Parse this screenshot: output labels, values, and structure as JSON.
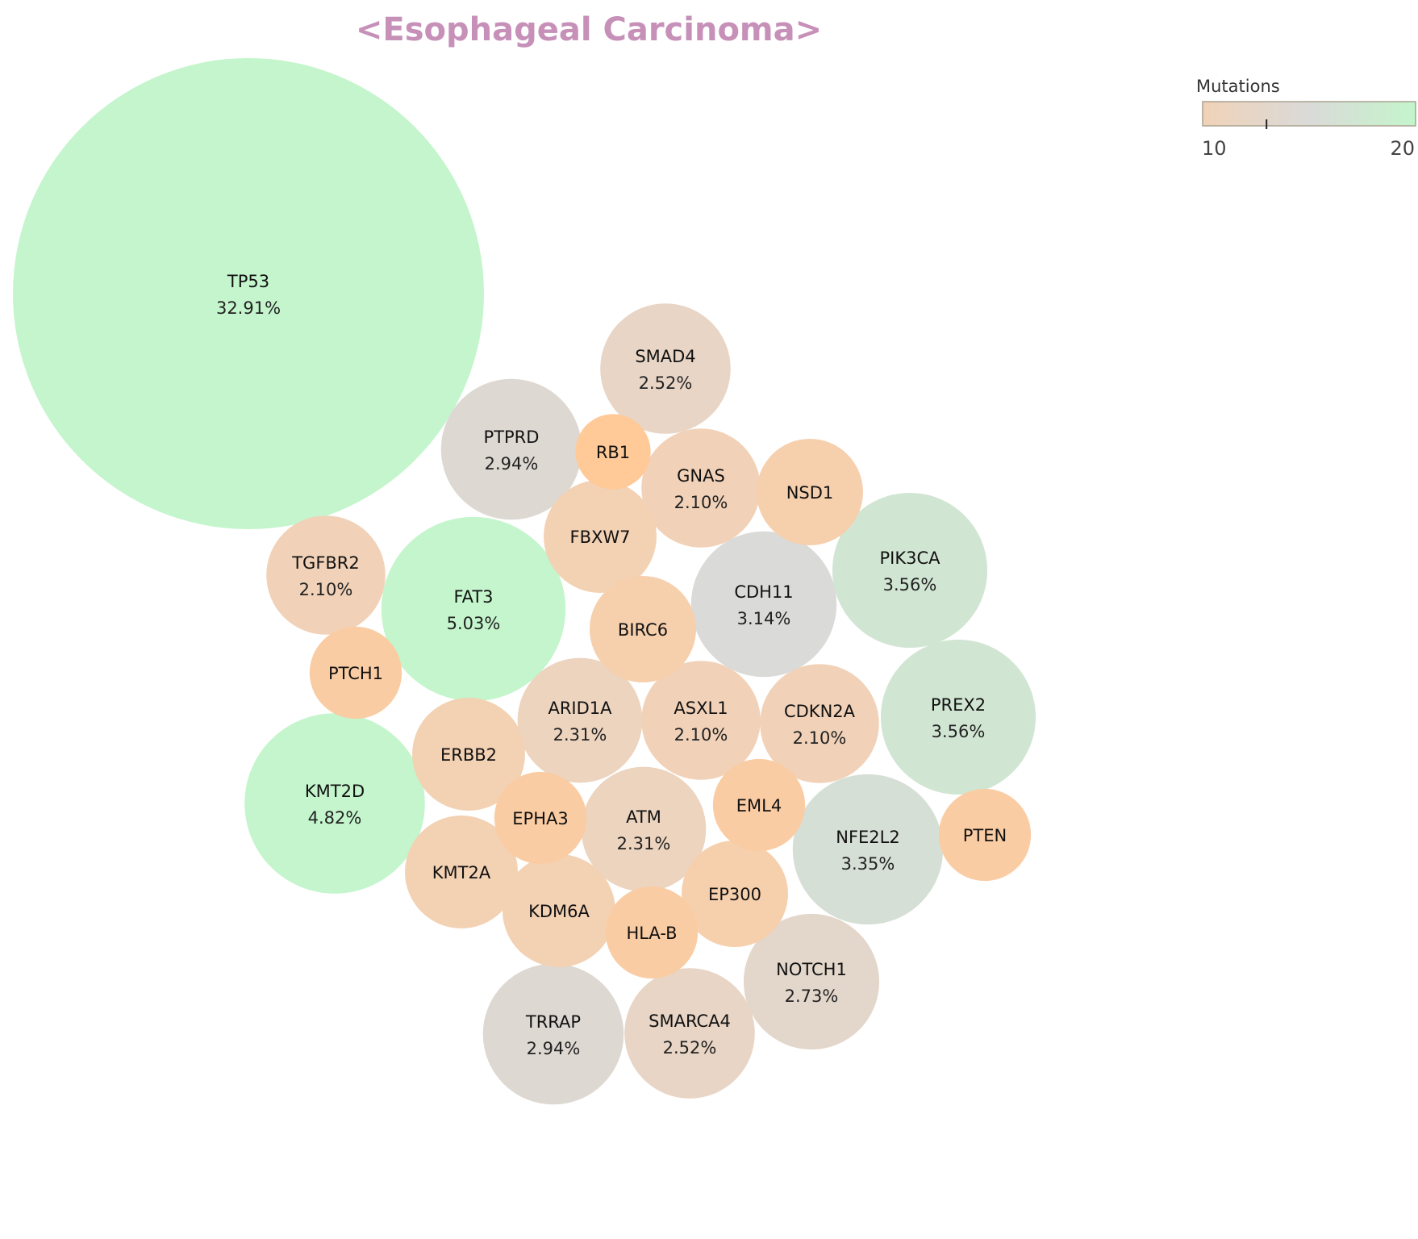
{
  "chart_data": {
    "type": "bubble",
    "title": "<Esophageal Carcinoma>",
    "colorbar": {
      "title": "Mutations",
      "min": 10,
      "max": 20,
      "tick_labels": [
        "10",
        "20"
      ],
      "marker_value": 13,
      "colors": [
        "#f1d2b8",
        "#dadad8",
        "#c4f5cc"
      ]
    },
    "colors": {
      "title": "#c690b8",
      "orange": "#ffc998"
    },
    "bubbles": [
      {
        "gene": "TP53",
        "pct": "32.91%",
        "value": 32.91
      },
      {
        "gene": "FAT3",
        "pct": "5.03%",
        "value": 5.03
      },
      {
        "gene": "KMT2D",
        "pct": "4.82%",
        "value": 4.82
      },
      {
        "gene": "PIK3CA",
        "pct": "3.56%",
        "value": 3.56
      },
      {
        "gene": "PREX2",
        "pct": "3.56%",
        "value": 3.56
      },
      {
        "gene": "NFE2L2",
        "pct": "3.35%",
        "value": 3.35
      },
      {
        "gene": "CDH11",
        "pct": "3.14%",
        "value": 3.14
      },
      {
        "gene": "PTPRD",
        "pct": "2.94%",
        "value": 2.94
      },
      {
        "gene": "TRRAP",
        "pct": "2.94%",
        "value": 2.94
      },
      {
        "gene": "NOTCH1",
        "pct": "2.73%",
        "value": 2.73
      },
      {
        "gene": "SMAD4",
        "pct": "2.52%",
        "value": 2.52
      },
      {
        "gene": "SMARCA4",
        "pct": "2.52%",
        "value": 2.52
      },
      {
        "gene": "ARID1A",
        "pct": "2.31%",
        "value": 2.31
      },
      {
        "gene": "ATM",
        "pct": "2.31%",
        "value": 2.31
      },
      {
        "gene": "TGFBR2",
        "pct": "2.10%",
        "value": 2.1
      },
      {
        "gene": "GNAS",
        "pct": "2.10%",
        "value": 2.1
      },
      {
        "gene": "ASXL1",
        "pct": "2.10%",
        "value": 2.1
      },
      {
        "gene": "CDKN2A",
        "pct": "2.10%",
        "value": 2.1
      },
      {
        "gene": "FBXW7",
        "pct": "",
        "value": 1.89
      },
      {
        "gene": "ERBB2",
        "pct": "",
        "value": 1.89
      },
      {
        "gene": "KMT2A",
        "pct": "",
        "value": 1.89
      },
      {
        "gene": "KDM6A",
        "pct": "",
        "value": 1.89
      },
      {
        "gene": "NSD1",
        "pct": "",
        "value": 1.68
      },
      {
        "gene": "BIRC6",
        "pct": "",
        "value": 1.68
      },
      {
        "gene": "EP300",
        "pct": "",
        "value": 1.68
      },
      {
        "gene": "PTCH1",
        "pct": "",
        "value": 1.26
      },
      {
        "gene": "EPHA3",
        "pct": "",
        "value": 1.26
      },
      {
        "gene": "EML4",
        "pct": "",
        "value": 1.26
      },
      {
        "gene": "HLA-B",
        "pct": "",
        "value": 1.26
      },
      {
        "gene": "PTEN",
        "pct": "",
        "value": 1.26
      },
      {
        "gene": "RB1",
        "pct": "",
        "value": 0.84
      }
    ]
  }
}
